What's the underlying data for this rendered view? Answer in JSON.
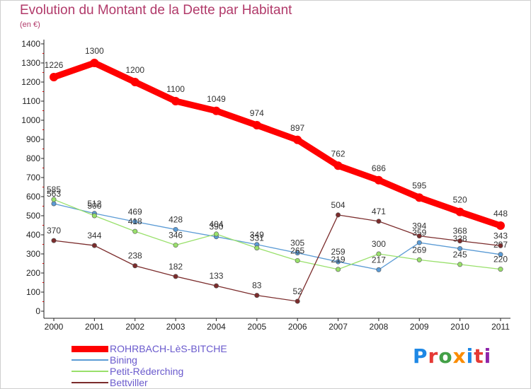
{
  "title": "Evolution du Montant de la Dette par Habitant",
  "subtitle": "(en €)",
  "logo_text": "Proxiti",
  "chart_data": {
    "type": "line",
    "title": "Evolution du Montant de la Dette par Habitant",
    "subtitle": "(en €)",
    "xlabel": "",
    "ylabel": "",
    "categories": [
      "2000",
      "2001",
      "2002",
      "2003",
      "2004",
      "2005",
      "2006",
      "2007",
      "2008",
      "2009",
      "2010",
      "2011"
    ],
    "ylim": [
      0,
      1400
    ],
    "yticks": [
      0,
      100,
      200,
      300,
      400,
      500,
      600,
      700,
      800,
      900,
      1000,
      1100,
      1200,
      1300,
      1400
    ],
    "grid": false,
    "legend_position": "bottom-left",
    "series": [
      {
        "name": "ROHRBACH-LèS-BITCHE",
        "color": "#ff0000",
        "values": [
          1226,
          1300,
          1200,
          1100,
          1049,
          974,
          897,
          762,
          686,
          595,
          520,
          448
        ]
      },
      {
        "name": "Bining",
        "color": "#5b9bd5",
        "values": [
          563,
          512,
          469,
          428,
          390,
          349,
          305,
          259,
          217,
          359,
          328,
          297
        ]
      },
      {
        "name": "Petit-Réderching",
        "color": "#99e06b",
        "values": [
          585,
          500,
          418,
          346,
          404,
          331,
          265,
          219,
          300,
          269,
          245,
          220
        ]
      },
      {
        "name": "Bettviller",
        "color": "#7b2c2c",
        "values": [
          370,
          344,
          238,
          182,
          133,
          83,
          52,
          504,
          471,
          394,
          368,
          343
        ]
      }
    ]
  }
}
